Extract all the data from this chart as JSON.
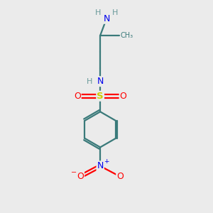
{
  "background_color": "#ebebeb",
  "bond_color": "#3a7a7a",
  "atom_colors": {
    "N": "#0000ee",
    "O": "#ff0000",
    "S": "#cccc00",
    "H": "#6a9a9a",
    "C": "#3a7a7a"
  },
  "figsize": [
    3.0,
    3.0
  ],
  "dpi": 100,
  "lw": 1.6,
  "fs": 8.5
}
